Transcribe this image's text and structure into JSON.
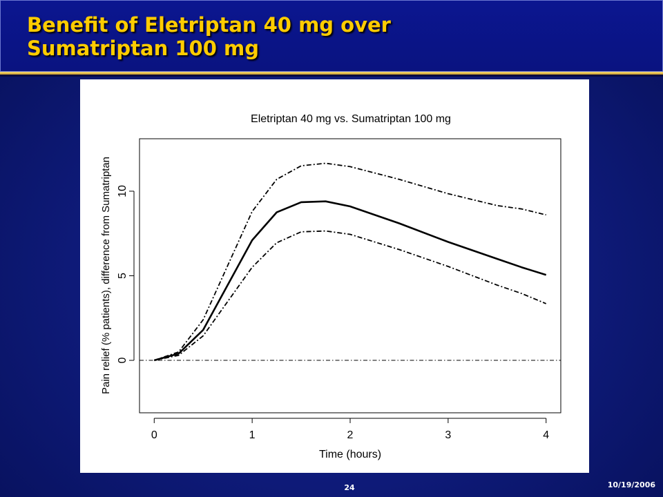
{
  "slide": {
    "title_line1": "Benefit of Eletriptan 40 mg over",
    "title_line2": "Sumatriptan 100 mg",
    "page_number": "24",
    "date": "10/19/2006",
    "colors": {
      "background": "#0e1a78",
      "title": "#ffcc00",
      "rule": "#e8c050"
    }
  },
  "chart_data": {
    "type": "line",
    "title": "Eletriptan 40 mg vs. Sumatriptan 100 mg",
    "xlabel": "Time (hours)",
    "ylabel": "Pain relief (% patients), difference from Sumatriptan",
    "xlim": [
      -0.15,
      4.15
    ],
    "ylim": [
      -3.1,
      13.1
    ],
    "xticks": [
      0,
      1,
      2,
      3,
      4
    ],
    "yticks": [
      0,
      5,
      10
    ],
    "grid": false,
    "legend": "none",
    "series": [
      {
        "style": "solid",
        "x": [
          0,
          0.25,
          0.5,
          1.0,
          1.25,
          1.5,
          1.75,
          2.0,
          2.5,
          3.0,
          3.5,
          3.75,
          4.0
        ],
        "y": [
          0,
          0.4,
          1.8,
          7.1,
          8.75,
          9.35,
          9.4,
          9.1,
          8.1,
          7.0,
          6.0,
          5.5,
          5.05
        ]
      },
      {
        "style": "dash-dot",
        "x": [
          0,
          0.25,
          0.5,
          1.0,
          1.25,
          1.5,
          1.75,
          2.0,
          2.5,
          3.0,
          3.5,
          3.75,
          4.0
        ],
        "y": [
          0,
          0.5,
          2.4,
          8.8,
          10.7,
          11.5,
          11.65,
          11.45,
          10.7,
          9.85,
          9.15,
          8.95,
          8.6
        ]
      },
      {
        "style": "dash-dot",
        "x": [
          0,
          0.25,
          0.5,
          1.0,
          1.25,
          1.5,
          1.75,
          2.0,
          2.5,
          3.0,
          3.5,
          3.75,
          4.0
        ],
        "y": [
          0,
          0.3,
          1.45,
          5.5,
          6.95,
          7.6,
          7.65,
          7.45,
          6.55,
          5.55,
          4.45,
          3.95,
          3.35
        ]
      },
      {
        "style": "reference",
        "x": [
          -0.15,
          4.15
        ],
        "y": [
          0,
          0
        ]
      }
    ]
  }
}
